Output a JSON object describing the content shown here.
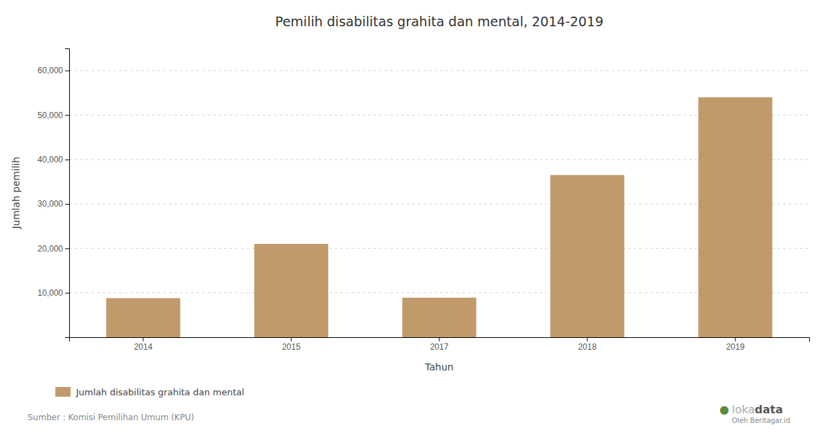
{
  "chart_data": {
    "type": "bar",
    "title": "Pemilih disabilitas grahita dan mental, 2014-2019",
    "xlabel": "Tahun",
    "ylabel": "Jumlah pemilih",
    "categories": [
      "2014",
      "2015",
      "2017",
      "2018",
      "2019"
    ],
    "series": [
      {
        "name": "Jumlah disabilitas grahita dan mental",
        "color": "#C19A6B",
        "values": [
          8800,
          21000,
          8900,
          36500,
          54000
        ]
      }
    ],
    "ylim": [
      0,
      65000
    ],
    "yticks": [
      {
        "value": 10000,
        "label": "10,000"
      },
      {
        "value": 20000,
        "label": "20,000"
      },
      {
        "value": 30000,
        "label": "30,000"
      },
      {
        "value": 40000,
        "label": "40,000"
      },
      {
        "value": 50000,
        "label": "50,000"
      },
      {
        "value": 60000,
        "label": "60,000"
      }
    ],
    "grid": true,
    "legend": "bottom",
    "annotations": [
      "Sumber : Komisi Pemilihan Umum (KPU)",
      "●",
      "loka",
      "data",
      "Oleh Beritagar.id"
    ]
  }
}
